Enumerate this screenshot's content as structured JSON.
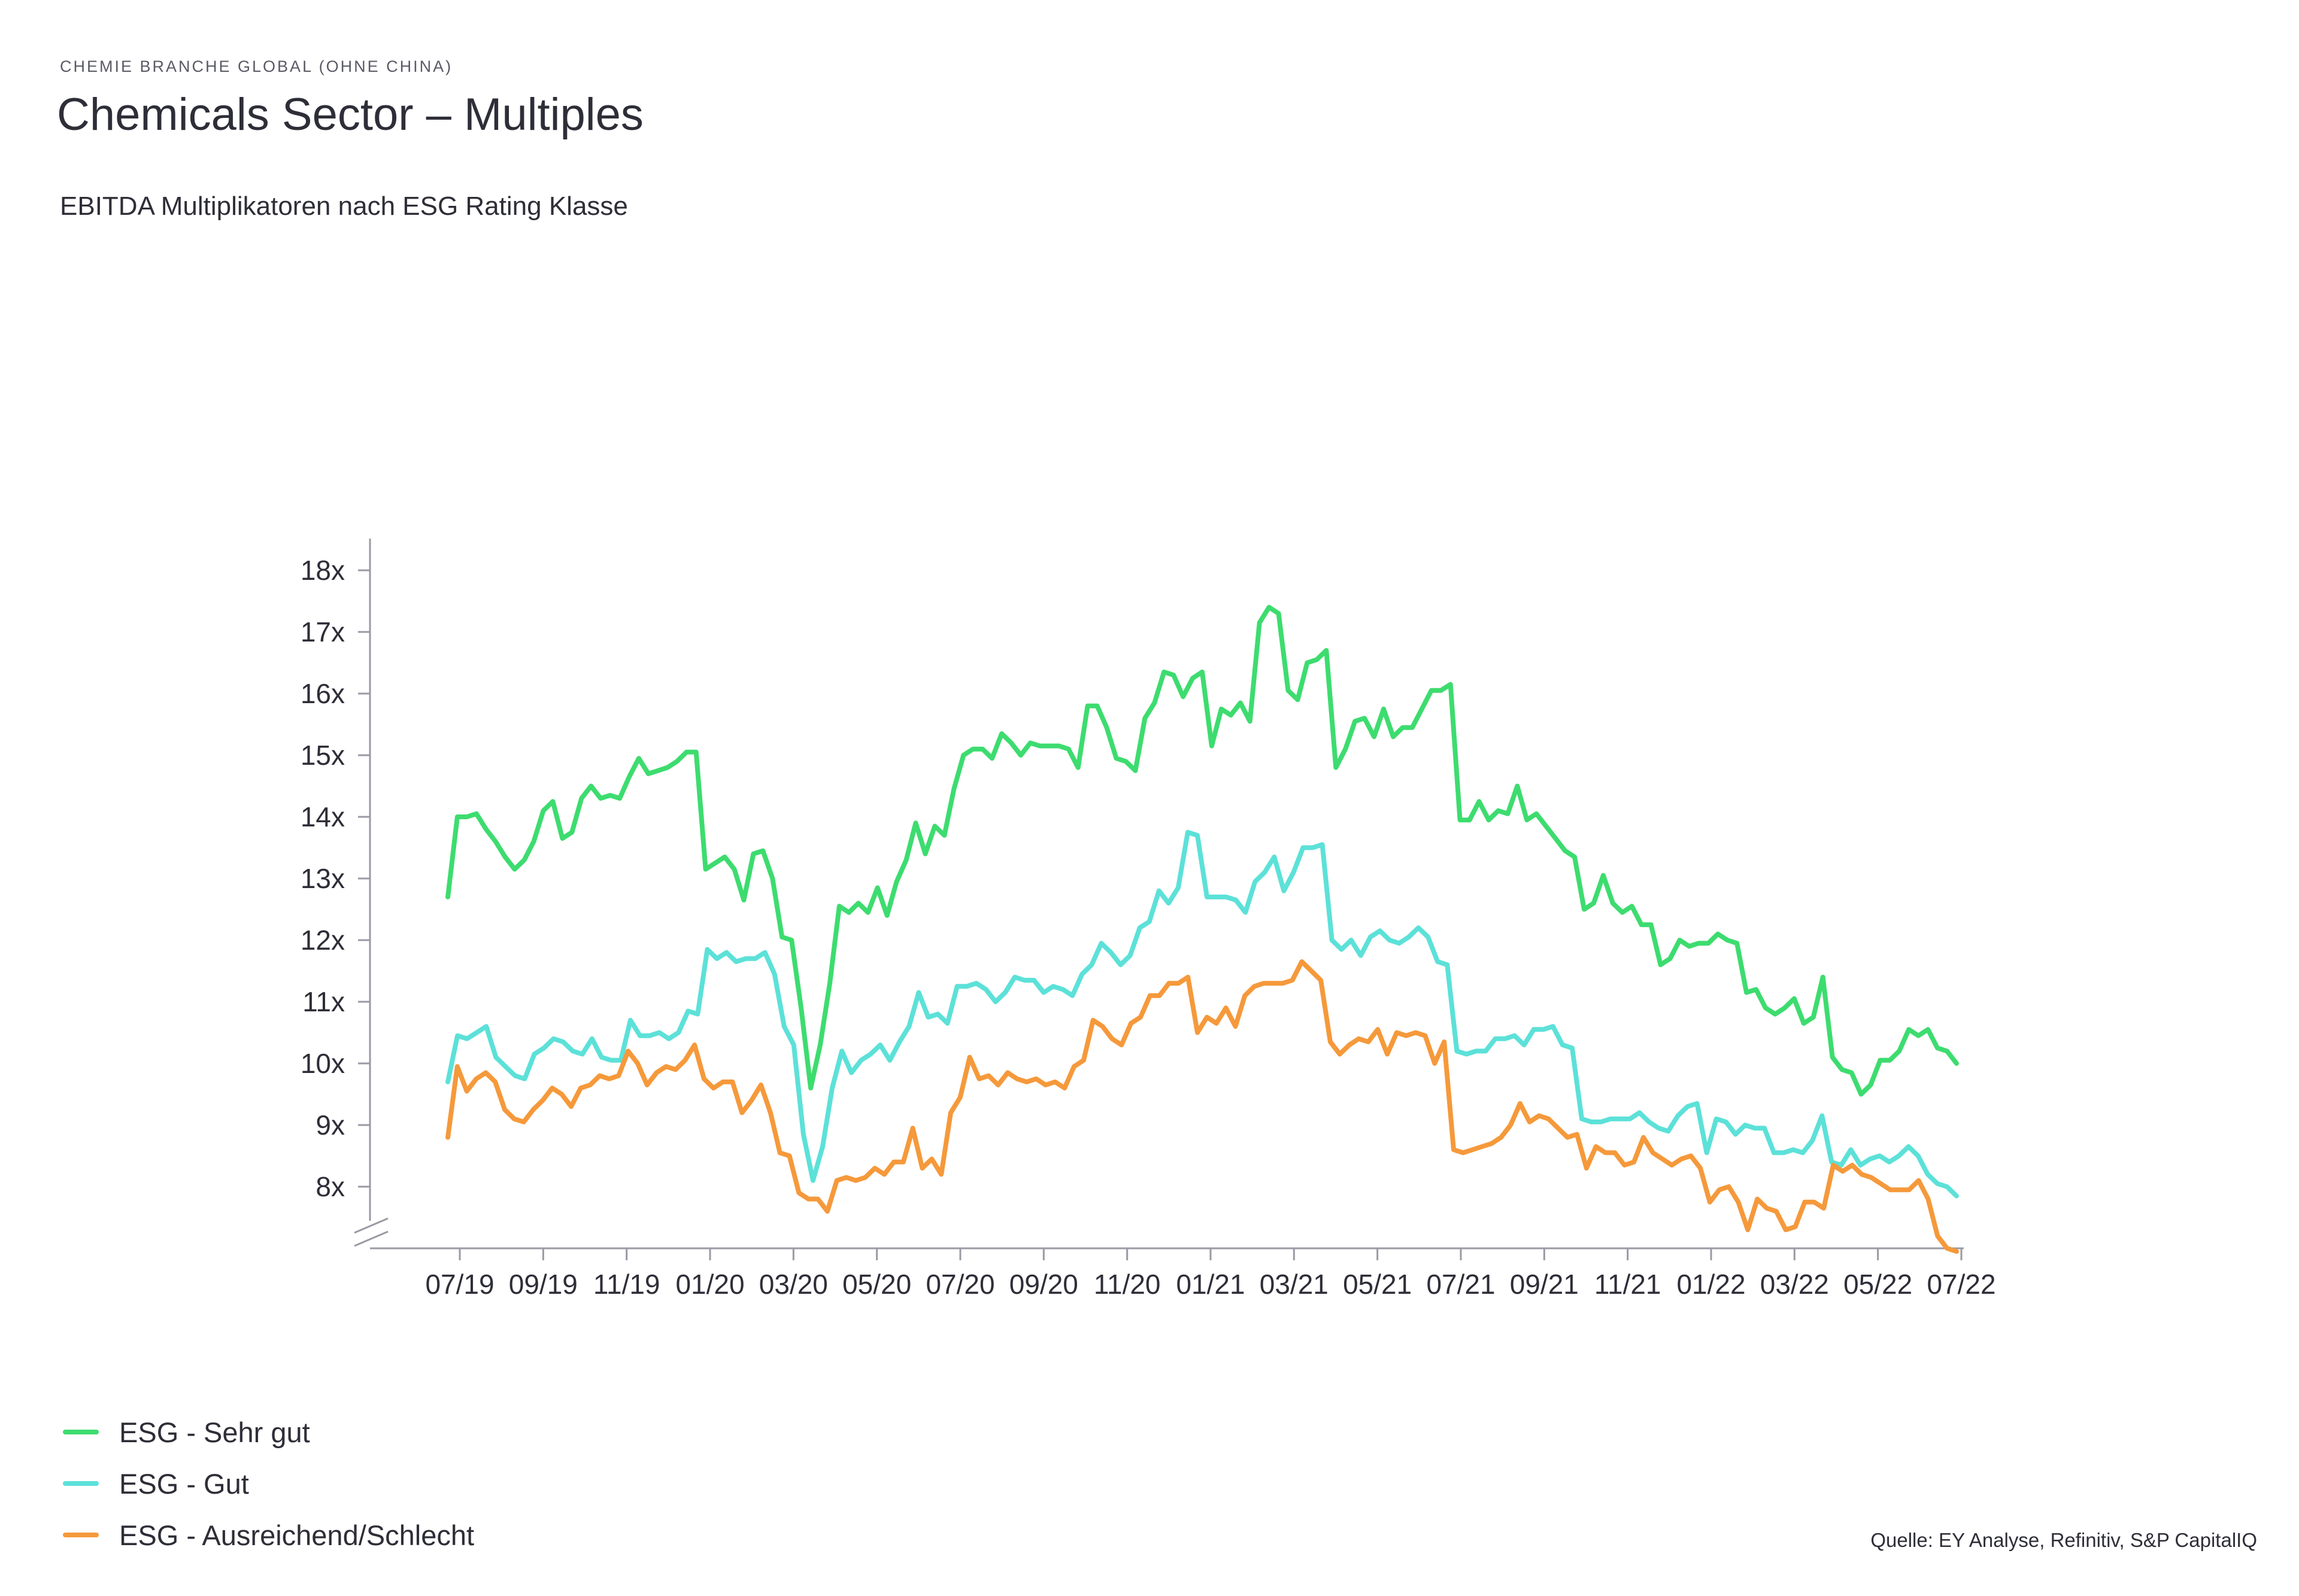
{
  "header": {
    "kicker": "CHEMIE BRANCHE GLOBAL (OHNE CHINA)",
    "title": "Chemicals Sector – Multiples",
    "subtitle": "EBITDA Multiplikatoren nach ESG Rating Klasse"
  },
  "source": "Quelle: EY Analyse, Refinitiv, S&P CapitalIQ",
  "chart_data": {
    "type": "line",
    "title": "Chemicals Sector – Multiples",
    "subtitle": "EBITDA Multiplikatoren nach ESG Rating Klasse",
    "xlabel": "",
    "ylabel": "",
    "x_tick_labels": [
      "07/19",
      "09/19",
      "11/19",
      "01/20",
      "03/20",
      "05/20",
      "07/20",
      "09/20",
      "11/20",
      "01/21",
      "03/21",
      "05/21",
      "07/21",
      "09/21",
      "11/21",
      "01/22",
      "03/22",
      "05/22",
      "07/22"
    ],
    "y_tick_labels": [
      "8x",
      "9x",
      "10x",
      "11x",
      "12x",
      "13x",
      "14x",
      "15x",
      "16x",
      "17x",
      "18x"
    ],
    "y_ticks": [
      8,
      9,
      10,
      11,
      12,
      13,
      14,
      15,
      16,
      17,
      18
    ],
    "ylim": [
      7,
      18
    ],
    "x_range": [
      "07/19",
      "07/22"
    ],
    "y_axis_break": true,
    "grid": false,
    "legend_position": "bottom-left",
    "series": [
      {
        "name": "ESG - Sehr gut",
        "color": "#3ddc6f",
        "values": [
          12.7,
          14.0,
          14.0,
          14.05,
          13.8,
          13.6,
          13.35,
          13.15,
          13.3,
          13.6,
          14.1,
          14.25,
          13.65,
          13.75,
          14.3,
          14.5,
          14.3,
          14.35,
          14.3,
          14.65,
          14.95,
          14.7,
          14.75,
          14.8,
          14.9,
          15.05,
          15.05,
          13.15,
          13.25,
          13.35,
          13.15,
          12.65,
          13.4,
          13.45,
          13.0,
          12.05,
          12.0,
          10.9,
          9.6,
          10.3,
          11.3,
          12.55,
          12.45,
          12.6,
          12.45,
          12.85,
          12.4,
          12.95,
          13.3,
          13.9,
          13.4,
          13.85,
          13.7,
          14.45,
          15.0,
          15.1,
          15.1,
          14.95,
          15.35,
          15.2,
          15.0,
          15.2,
          15.15,
          15.15,
          15.15,
          15.1,
          14.8,
          15.8,
          15.8,
          15.45,
          14.95,
          14.9,
          14.75,
          15.6,
          15.85,
          16.35,
          16.3,
          15.95,
          16.25,
          16.35,
          15.15,
          15.75,
          15.65,
          15.85,
          15.55,
          17.15,
          17.4,
          17.3,
          16.05,
          15.9,
          16.5,
          16.55,
          16.7,
          14.8,
          15.1,
          15.55,
          15.6,
          15.3,
          15.75,
          15.3,
          15.45,
          15.45,
          15.75,
          16.05,
          16.05,
          16.15,
          13.95,
          13.95,
          14.25,
          13.95,
          14.1,
          14.05,
          14.5,
          13.95,
          14.05,
          13.85,
          13.65,
          13.45,
          13.35,
          12.5,
          12.6,
          13.05,
          12.6,
          12.45,
          12.55,
          12.25,
          12.25,
          11.6,
          11.7,
          12.0,
          11.9,
          11.95,
          11.95,
          12.1,
          12.0,
          11.95,
          11.15,
          11.2,
          10.9,
          10.8,
          10.9,
          11.05,
          10.65,
          10.75,
          11.4,
          10.1,
          9.9,
          9.85,
          9.5,
          9.65,
          10.05,
          10.05,
          10.2,
          10.55,
          10.45,
          10.55,
          10.25,
          10.2,
          10.0
        ]
      },
      {
        "name": "ESG - Gut",
        "color": "#5ce1d8",
        "values": [
          9.7,
          10.45,
          10.4,
          10.5,
          10.6,
          10.1,
          9.95,
          9.8,
          9.75,
          10.15,
          10.25,
          10.4,
          10.35,
          10.2,
          10.15,
          10.4,
          10.1,
          10.05,
          10.05,
          10.7,
          10.45,
          10.45,
          10.5,
          10.4,
          10.5,
          10.85,
          10.8,
          11.85,
          11.7,
          11.8,
          11.65,
          11.7,
          11.7,
          11.8,
          11.45,
          10.6,
          10.3,
          8.85,
          8.1,
          8.65,
          9.6,
          10.2,
          9.85,
          10.05,
          10.15,
          10.3,
          10.05,
          10.35,
          10.6,
          11.15,
          10.75,
          10.8,
          10.65,
          11.25,
          11.25,
          11.3,
          11.2,
          11.0,
          11.15,
          11.4,
          11.35,
          11.35,
          11.15,
          11.25,
          11.2,
          11.1,
          11.45,
          11.6,
          11.95,
          11.8,
          11.6,
          11.75,
          12.2,
          12.3,
          12.8,
          12.6,
          12.85,
          13.75,
          13.7,
          12.7,
          12.7,
          12.7,
          12.65,
          12.45,
          12.95,
          13.1,
          13.35,
          12.8,
          13.1,
          13.5,
          13.5,
          13.55,
          12.0,
          11.85,
          12.0,
          11.75,
          12.05,
          12.15,
          12.0,
          11.95,
          12.05,
          12.2,
          12.05,
          11.65,
          11.6,
          10.2,
          10.15,
          10.2,
          10.2,
          10.4,
          10.4,
          10.45,
          10.3,
          10.55,
          10.55,
          10.6,
          10.3,
          10.25,
          9.1,
          9.05,
          9.05,
          9.1,
          9.1,
          9.1,
          9.2,
          9.05,
          8.95,
          8.9,
          9.15,
          9.3,
          9.35,
          8.55,
          9.1,
          9.05,
          8.85,
          9.0,
          8.95,
          8.95,
          8.55,
          8.55,
          8.6,
          8.55,
          8.75,
          9.15,
          8.4,
          8.35,
          8.6,
          8.35,
          8.45,
          8.5,
          8.4,
          8.5,
          8.65,
          8.5,
          8.2,
          8.05,
          8.0,
          7.85
        ]
      },
      {
        "name": "ESG - Ausreichend/Schlecht",
        "color": "#f5993b",
        "values": [
          8.8,
          9.95,
          9.55,
          9.75,
          9.85,
          9.7,
          9.25,
          9.1,
          9.05,
          9.25,
          9.4,
          9.6,
          9.5,
          9.3,
          9.6,
          9.65,
          9.8,
          9.75,
          9.8,
          10.2,
          10.0,
          9.65,
          9.85,
          9.95,
          9.9,
          10.05,
          10.3,
          9.75,
          9.6,
          9.7,
          9.7,
          9.2,
          9.4,
          9.65,
          9.2,
          8.55,
          8.5,
          7.9,
          7.8,
          7.8,
          7.6,
          8.1,
          8.15,
          8.1,
          8.15,
          8.3,
          8.2,
          8.4,
          8.4,
          8.95,
          8.3,
          8.45,
          8.2,
          9.2,
          9.45,
          10.1,
          9.75,
          9.8,
          9.65,
          9.85,
          9.75,
          9.7,
          9.75,
          9.65,
          9.7,
          9.6,
          9.95,
          10.05,
          10.7,
          10.6,
          10.4,
          10.3,
          10.65,
          10.75,
          11.1,
          11.1,
          11.3,
          11.3,
          11.4,
          10.5,
          10.75,
          10.65,
          10.9,
          10.6,
          11.1,
          11.25,
          11.3,
          11.3,
          11.3,
          11.35,
          11.65,
          11.5,
          11.35,
          10.35,
          10.15,
          10.3,
          10.4,
          10.35,
          10.55,
          10.15,
          10.5,
          10.45,
          10.5,
          10.45,
          10.0,
          10.35,
          8.6,
          8.55,
          8.6,
          8.65,
          8.7,
          8.8,
          9.0,
          9.35,
          9.05,
          9.15,
          9.1,
          8.95,
          8.8,
          8.85,
          8.3,
          8.65,
          8.55,
          8.55,
          8.35,
          8.4,
          8.8,
          8.55,
          8.45,
          8.35,
          8.45,
          8.5,
          8.3,
          7.75,
          7.95,
          8.0,
          7.75,
          7.3,
          7.8,
          7.65,
          7.6,
          7.3,
          7.35,
          7.75,
          7.75,
          7.65,
          8.35,
          8.25,
          8.35,
          8.2,
          8.15,
          8.05,
          7.95,
          7.95,
          7.95,
          8.1,
          7.8,
          7.2,
          7.0,
          6.95
        ]
      }
    ]
  }
}
